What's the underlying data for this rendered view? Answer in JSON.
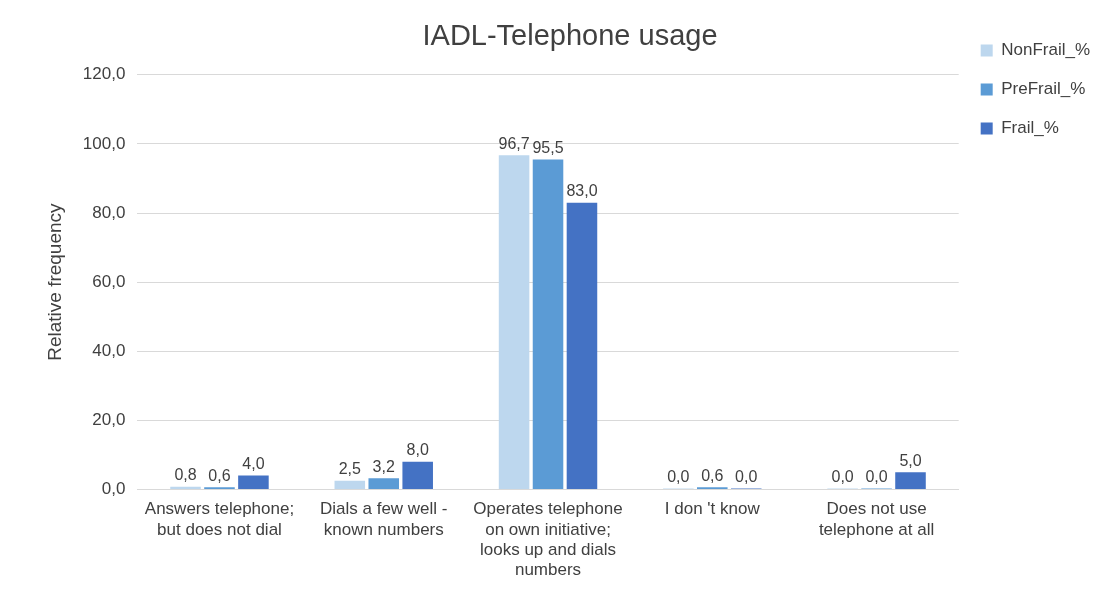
{
  "chart_data": {
    "type": "bar",
    "title": "IADL-Telephone usage",
    "ylabel": "Relative frequency",
    "categories": [
      "Answers telephone; but does not dial",
      "Dials a few well - known numbers",
      "Operates telephone on own initiative; looks up and dials numbers",
      "I don 't know",
      "Does not use telephone at all"
    ],
    "series": [
      {
        "name": "NonFrail_%",
        "color": "#bdd7ee",
        "values": [
          0.8,
          2.5,
          96.7,
          0.0,
          0.0
        ],
        "value_labels": [
          "0,8",
          "2,5",
          "96,7",
          "0,0",
          "0,0"
        ]
      },
      {
        "name": "PreFrail_%",
        "color": "#5b9bd5",
        "values": [
          0.6,
          3.2,
          95.5,
          0.6,
          0.0
        ],
        "value_labels": [
          "0,6",
          "3,2",
          "95,5",
          "0,6",
          "0,0"
        ]
      },
      {
        "name": "Frail_%",
        "color": "#4472c4",
        "values": [
          4.0,
          8.0,
          83.0,
          0.0,
          5.0
        ],
        "value_labels": [
          "4,0",
          "8,0",
          "83,0",
          "0,0",
          "5,0"
        ]
      }
    ],
    "ylim": [
      0,
      120
    ],
    "yticks": [
      {
        "value": 0,
        "label": "0,0"
      },
      {
        "value": 20,
        "label": "20,0"
      },
      {
        "value": 40,
        "label": "40,0"
      },
      {
        "value": 60,
        "label": "60,0"
      },
      {
        "value": 80,
        "label": "80,0"
      },
      {
        "value": 100,
        "label": "100,0"
      },
      {
        "value": 120,
        "label": "120,0"
      }
    ],
    "grid": "y",
    "legend": "top right"
  }
}
